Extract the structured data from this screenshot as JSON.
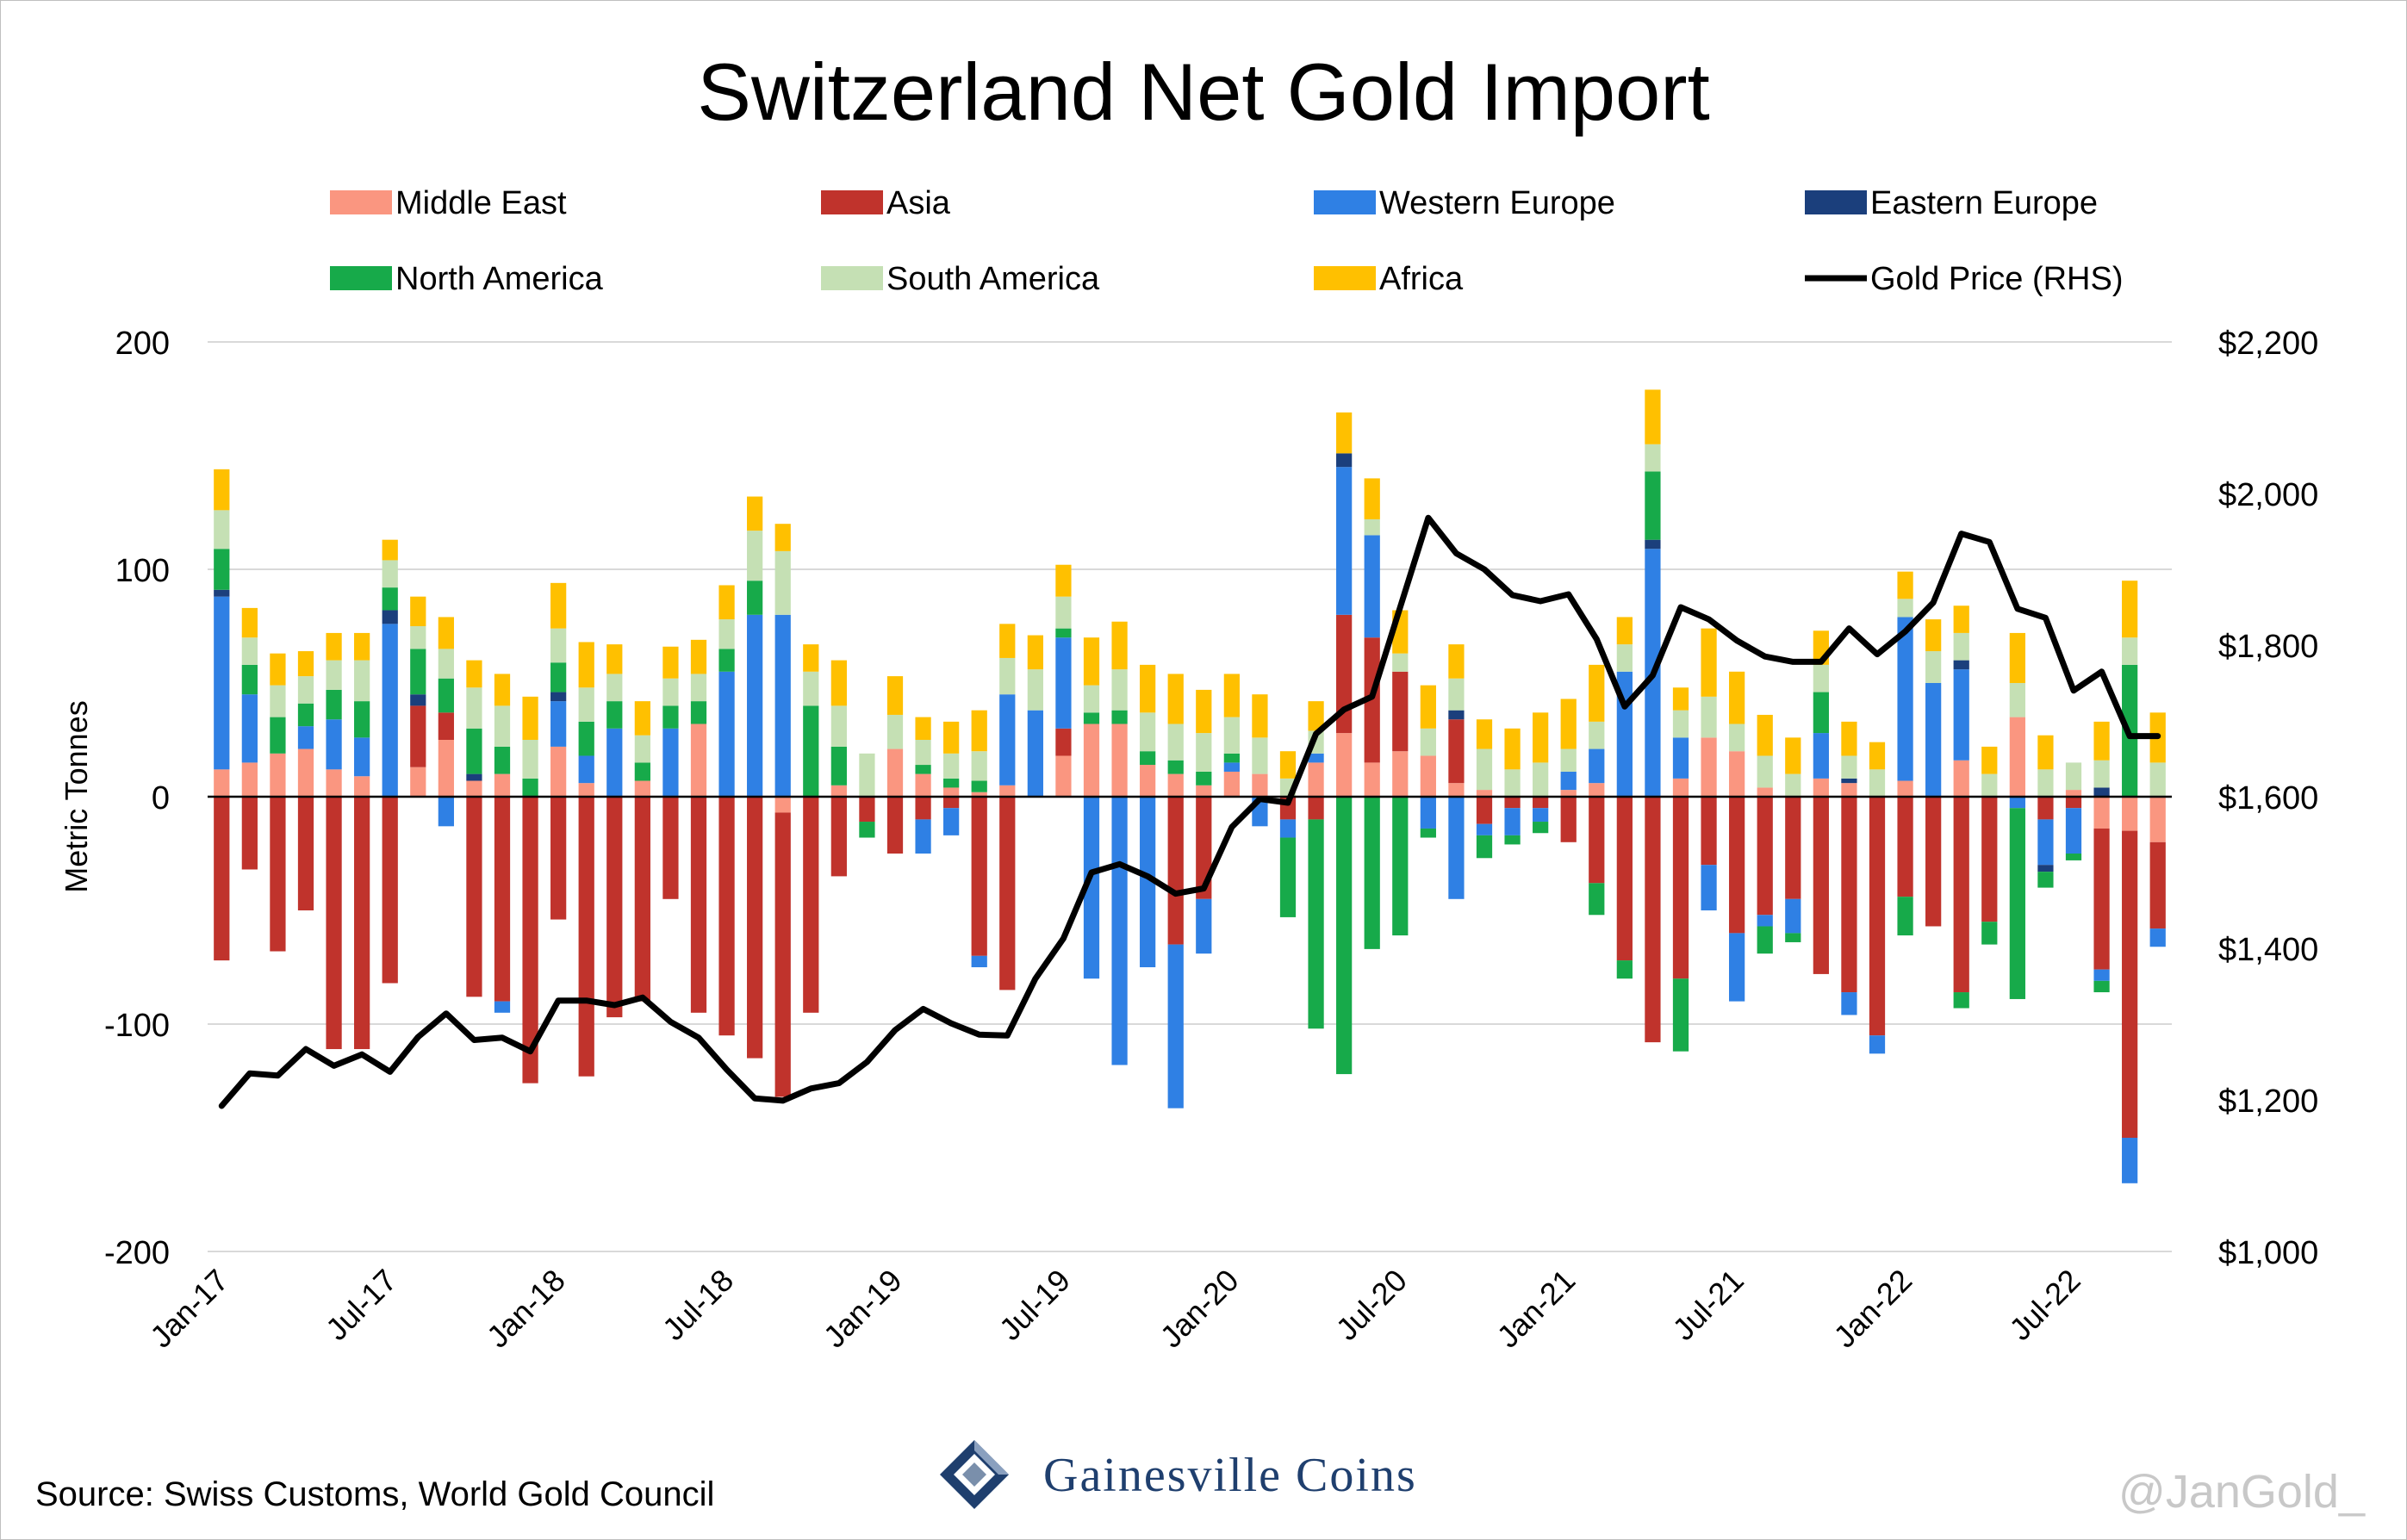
{
  "title": "Switzerland Net Gold Import",
  "source": "Source: Swiss Customs, World Gold Council",
  "watermark": "@JanGold_",
  "brand": "Gainesville Coins",
  "colors": {
    "Middle East": "#fa9680",
    "Asia": "#c0332c",
    "Western Europe": "#2f80e4",
    "Eastern Europe": "#1b3f7c",
    "North America": "#17aa4a",
    "South America": "#c5e0b4",
    "Africa": "#ffc000",
    "Gold Price (RHS)": "#000000"
  },
  "chart_data": {
    "type": "bar",
    "stacked": true,
    "ylabel": "Metric Tonnes",
    "ylim": [
      -200,
      200
    ],
    "yticks": [
      "200",
      "100",
      "0",
      "-100",
      "-200"
    ],
    "y2lim": [
      1000,
      2200
    ],
    "y2ticks": [
      "$2,200",
      "$2,000",
      "$1,800",
      "$1,600",
      "$1,400",
      "$1,200",
      "$1,000"
    ],
    "xtick_labels": [
      "Jan-17",
      "Jul-17",
      "Jan-18",
      "Jul-18",
      "Jan-19",
      "Jul-19",
      "Jan-20",
      "Jul-20",
      "Jan-21",
      "Jul-21",
      "Jan-22",
      "Jul-22"
    ],
    "x": [
      "Jan-17",
      "Feb-17",
      "Mar-17",
      "Apr-17",
      "May-17",
      "Jun-17",
      "Jul-17",
      "Aug-17",
      "Sep-17",
      "Oct-17",
      "Nov-17",
      "Dec-17",
      "Jan-18",
      "Feb-18",
      "Mar-18",
      "Apr-18",
      "May-18",
      "Jun-18",
      "Jul-18",
      "Aug-18",
      "Sep-18",
      "Oct-18",
      "Nov-18",
      "Dec-18",
      "Jan-19",
      "Feb-19",
      "Mar-19",
      "Apr-19",
      "May-19",
      "Jun-19",
      "Jul-19",
      "Aug-19",
      "Sep-19",
      "Oct-19",
      "Nov-19",
      "Dec-19",
      "Jan-20",
      "Feb-20",
      "Mar-20",
      "Apr-20",
      "May-20",
      "Jun-20",
      "Jul-20",
      "Aug-20",
      "Sep-20",
      "Oct-20",
      "Nov-20",
      "Dec-20",
      "Jan-21",
      "Feb-21",
      "Mar-21",
      "Apr-21",
      "May-21",
      "Jun-21",
      "Jul-21",
      "Aug-21",
      "Sep-21",
      "Oct-21",
      "Nov-21",
      "Dec-21",
      "Jan-22",
      "Feb-22",
      "Mar-22",
      "Apr-22",
      "May-22",
      "Jun-22",
      "Jul-22",
      "Aug-22",
      "Sep-22",
      "Oct-22"
    ],
    "series": [
      {
        "name": "Middle East",
        "values": [
          12,
          15,
          19,
          21,
          12,
          9,
          0,
          13,
          25,
          7,
          10,
          0,
          22,
          6,
          0,
          7,
          0,
          32,
          0,
          0,
          -7,
          0,
          5,
          0,
          21,
          10,
          4,
          2,
          5,
          0,
          18,
          32,
          32,
          14,
          10,
          5,
          11,
          10,
          0,
          15,
          28,
          15,
          20,
          18,
          6,
          3,
          0,
          0,
          3,
          6,
          0,
          0,
          8,
          26,
          20,
          4,
          0,
          8,
          6,
          0,
          7,
          0,
          16,
          0,
          35,
          0,
          3,
          -14,
          -15,
          -20
        ]
      },
      {
        "name": "Asia",
        "values": [
          -72,
          -32,
          -68,
          -50,
          -111,
          -111,
          -82,
          27,
          12,
          -88,
          -90,
          -126,
          -54,
          -123,
          -97,
          -90,
          -45,
          -95,
          -105,
          -115,
          -125,
          -95,
          -35,
          -11,
          -25,
          -10,
          -5,
          -70,
          -85,
          0,
          12,
          0,
          0,
          0,
          -65,
          -45,
          0,
          0,
          -10,
          -10,
          52,
          55,
          35,
          0,
          28,
          -12,
          -5,
          -5,
          -20,
          -38,
          -72,
          -108,
          -80,
          -30,
          -60,
          -52,
          -45,
          -78,
          -86,
          -105,
          -44,
          -57,
          -86,
          -55,
          0,
          -10,
          -5,
          -62,
          -135,
          -38
        ]
      },
      {
        "name": "Western Europe",
        "values": [
          76,
          30,
          0,
          10,
          22,
          17,
          76,
          0,
          -13,
          0,
          -5,
          0,
          20,
          12,
          30,
          0,
          30,
          0,
          55,
          80,
          80,
          0,
          0,
          0,
          0,
          -15,
          -12,
          -5,
          40,
          38,
          40,
          -80,
          -118,
          -75,
          -72,
          -24,
          4,
          -13,
          -8,
          4,
          65,
          45,
          0,
          -14,
          -45,
          -5,
          -12,
          -6,
          8,
          15,
          55,
          109,
          18,
          -20,
          -30,
          -5,
          -15,
          20,
          -10,
          -8,
          72,
          50,
          40,
          0,
          -5,
          -20,
          -20,
          -5,
          -20,
          -8
        ]
      },
      {
        "name": "Eastern Europe",
        "values": [
          3,
          0,
          0,
          0,
          0,
          0,
          6,
          5,
          0,
          3,
          0,
          0,
          4,
          0,
          0,
          0,
          0,
          0,
          0,
          0,
          0,
          0,
          0,
          0,
          0,
          0,
          0,
          0,
          0,
          0,
          0,
          0,
          0,
          0,
          0,
          0,
          0,
          0,
          0,
          0,
          6,
          0,
          0,
          0,
          4,
          0,
          0,
          0,
          0,
          0,
          0,
          4,
          0,
          0,
          0,
          0,
          0,
          0,
          2,
          0,
          0,
          0,
          4,
          0,
          0,
          -3,
          0,
          4,
          0,
          0
        ]
      },
      {
        "name": "North America",
        "values": [
          18,
          13,
          16,
          10,
          13,
          16,
          10,
          20,
          15,
          20,
          12,
          8,
          13,
          15,
          12,
          8,
          10,
          10,
          10,
          15,
          0,
          40,
          17,
          -7,
          0,
          4,
          4,
          5,
          0,
          0,
          4,
          5,
          6,
          6,
          6,
          6,
          4,
          0,
          -35,
          -92,
          -122,
          -67,
          -61,
          -4,
          0,
          -10,
          -4,
          -5,
          0,
          -14,
          -8,
          30,
          -32,
          0,
          0,
          -12,
          -4,
          18,
          0,
          0,
          -17,
          0,
          -7,
          -10,
          -84,
          -7,
          -3,
          -5,
          58,
          0
        ]
      },
      {
        "name": "South America",
        "values": [
          17,
          12,
          14,
          12,
          13,
          18,
          12,
          10,
          13,
          18,
          18,
          17,
          15,
          15,
          12,
          12,
          12,
          12,
          13,
          22,
          28,
          15,
          18,
          19,
          15,
          11,
          11,
          13,
          16,
          18,
          14,
          12,
          18,
          17,
          16,
          17,
          16,
          16,
          8,
          10,
          0,
          7,
          8,
          12,
          14,
          18,
          12,
          15,
          10,
          12,
          12,
          12,
          12,
          18,
          12,
          14,
          10,
          12,
          10,
          12,
          8,
          14,
          12,
          10,
          15,
          12,
          12,
          12,
          12,
          15
        ]
      },
      {
        "name": "Africa",
        "values": [
          18,
          13,
          14,
          11,
          12,
          12,
          9,
          13,
          14,
          12,
          14,
          19,
          20,
          20,
          13,
          15,
          14,
          15,
          15,
          15,
          12,
          12,
          20,
          0,
          17,
          10,
          14,
          18,
          15,
          15,
          14,
          21,
          21,
          21,
          22,
          19,
          19,
          19,
          12,
          13,
          18,
          18,
          19,
          19,
          15,
          13,
          18,
          22,
          22,
          25,
          12,
          24,
          10,
          30,
          23,
          18,
          16,
          15,
          15,
          12,
          12,
          14,
          12,
          12,
          22,
          15,
          0,
          17,
          25,
          22
        ]
      }
    ],
    "line": {
      "name": "Gold Price (RHS)",
      "values": [
        1192,
        1235,
        1232,
        1267,
        1245,
        1260,
        1237,
        1283,
        1314,
        1279,
        1282,
        1264,
        1331,
        1331,
        1325,
        1335,
        1303,
        1282,
        1240,
        1202,
        1199,
        1215,
        1222,
        1250,
        1292,
        1320,
        1301,
        1286,
        1285,
        1360,
        1413,
        1500,
        1511,
        1495,
        1472,
        1479,
        1560,
        1597,
        1592,
        1683,
        1715,
        1732,
        1850,
        1968,
        1921,
        1900,
        1866,
        1858,
        1867,
        1808,
        1719,
        1760,
        1850,
        1834,
        1806,
        1785,
        1778,
        1778,
        1822,
        1788,
        1818,
        1856,
        1947,
        1936,
        1848,
        1836,
        1740,
        1765,
        1680,
        1680
      ]
    },
    "legend": "top, two rows"
  }
}
